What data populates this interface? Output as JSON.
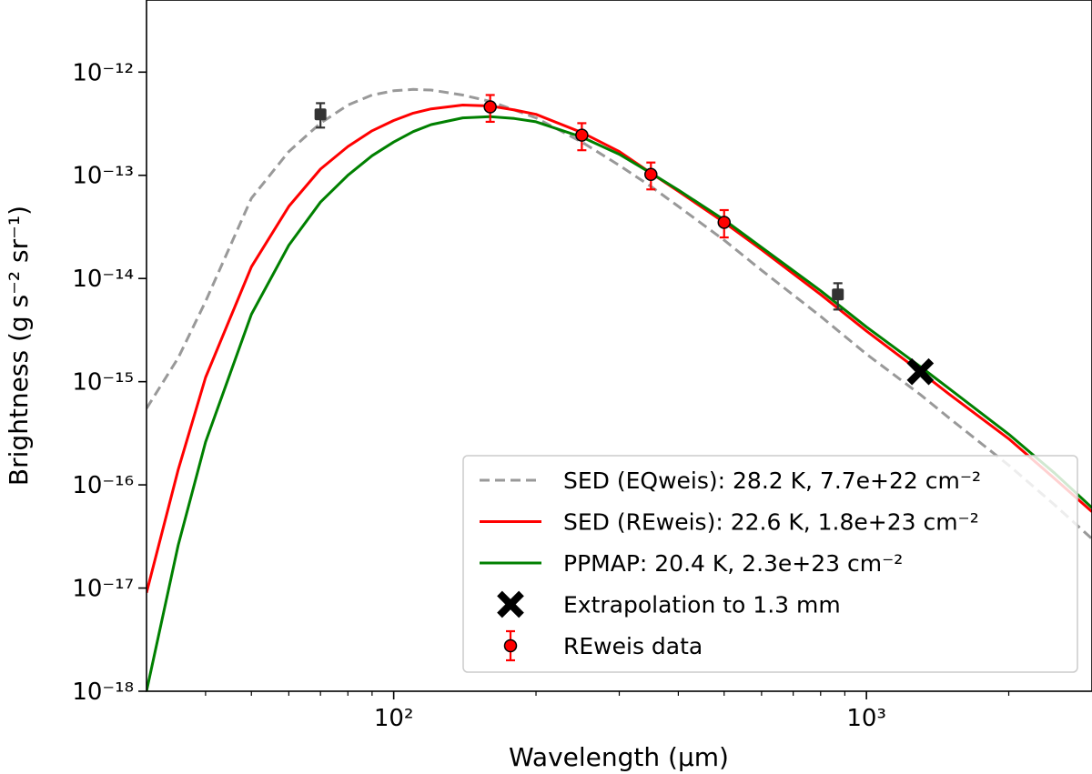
{
  "chart_data": {
    "type": "line",
    "xlabel": "Wavelength (μm)",
    "ylabel": "Brightness (g s⁻² sr⁻¹)",
    "xscale": "log",
    "yscale": "log",
    "xlim": [
      30,
      3000
    ],
    "ylim": [
      1e-18,
      5e-12
    ],
    "x_ticks": [
      {
        "value": 100,
        "label": "10²"
      },
      {
        "value": 1000,
        "label": "10³"
      }
    ],
    "y_ticks": [
      {
        "value": 1e-18,
        "label": "10⁻¹⁸"
      },
      {
        "value": 1e-17,
        "label": "10⁻¹⁷"
      },
      {
        "value": 1e-16,
        "label": "10⁻¹⁶"
      },
      {
        "value": 1e-15,
        "label": "10⁻¹⁵"
      },
      {
        "value": 1e-14,
        "label": "10⁻¹⁴"
      },
      {
        "value": 1e-13,
        "label": "10⁻¹³"
      },
      {
        "value": 1e-12,
        "label": "10⁻¹²"
      }
    ],
    "legend_position": "lower right",
    "series": [
      {
        "name": "SED (EQweis): 28.2 K, 7.7e+22 cm⁻²",
        "style": "dashed",
        "color": "#999999",
        "x": [
          30,
          35,
          40,
          50,
          60,
          70,
          80,
          90,
          100,
          110,
          120,
          140,
          160,
          180,
          200,
          250,
          300,
          350,
          400,
          500,
          600,
          800,
          1000,
          1300,
          1500,
          2000,
          2500,
          3000
        ],
        "y": [
          5.5e-16,
          1.7e-15,
          6e-15,
          6e-14,
          1.7e-13,
          3.2e-13,
          4.8e-13,
          6e-13,
          6.6e-13,
          6.8e-13,
          6.7e-13,
          6e-13,
          5.2e-13,
          4.3e-13,
          3.6e-13,
          2.1e-13,
          1.25e-13,
          7.8e-14,
          5e-14,
          2.35e-14,
          1.2e-14,
          4.3e-15,
          1.85e-15,
          7.5e-16,
          4.4e-16,
          1.55e-16,
          6.4e-17,
          3e-17
        ]
      },
      {
        "name": "SED (REweis): 22.6 K, 1.8e+23 cm⁻²",
        "style": "solid",
        "color": "#ff0000",
        "x": [
          30,
          35,
          40,
          50,
          60,
          70,
          80,
          90,
          100,
          110,
          120,
          140,
          160,
          180,
          200,
          250,
          300,
          350,
          400,
          500,
          600,
          800,
          1000,
          1300,
          1500,
          2000,
          2500,
          3000
        ],
        "y": [
          9e-18,
          1.4e-16,
          1.1e-15,
          1.3e-14,
          5e-14,
          1.15e-13,
          1.9e-13,
          2.7e-13,
          3.4e-13,
          4e-13,
          4.4e-13,
          4.8e-13,
          4.7e-13,
          4.3e-13,
          3.9e-13,
          2.6e-13,
          1.7e-13,
          1.05e-13,
          7e-14,
          3.5e-14,
          1.9e-14,
          7e-15,
          3.1e-15,
          1.25e-15,
          7.5e-16,
          2.8e-16,
          1.15e-16,
          5.5e-17
        ]
      },
      {
        "name": "PPMAP: 20.4 K, 2.3e+23 cm⁻²",
        "style": "solid",
        "color": "#008000",
        "x": [
          30,
          35,
          40,
          50,
          60,
          70,
          80,
          90,
          100,
          110,
          120,
          140,
          160,
          180,
          200,
          250,
          300,
          350,
          400,
          500,
          600,
          800,
          1000,
          1300,
          1500,
          2000,
          2500,
          3000
        ],
        "y": [
          1e-18,
          2.6e-17,
          2.6e-16,
          4.5e-15,
          2.1e-14,
          5.5e-14,
          1e-13,
          1.55e-13,
          2.1e-13,
          2.65e-13,
          3.1e-13,
          3.6e-13,
          3.7e-13,
          3.55e-13,
          3.3e-13,
          2.35e-13,
          1.6e-13,
          1.05e-13,
          7.2e-14,
          3.7e-14,
          2e-14,
          7.6e-15,
          3.4e-15,
          1.4e-15,
          8.5e-16,
          3.1e-16,
          1.3e-16,
          6e-17
        ]
      },
      {
        "name": "Extrapolation to 1.3 mm",
        "style": "marker-x",
        "color": "#000000",
        "x": [
          1300
        ],
        "y": [
          1.25e-15
        ]
      },
      {
        "name": "REweis data",
        "style": "marker-errorbar",
        "color": "#ff0000",
        "x": [
          160,
          250,
          350,
          500
        ],
        "y": [
          4.6e-13,
          2.45e-13,
          1.02e-13,
          3.5e-14
        ],
        "yerr_low": [
          3.3e-13,
          1.75e-13,
          7.3e-14,
          2.5e-14
        ],
        "yerr_high": [
          6e-13,
          3.2e-13,
          1.33e-13,
          4.6e-14
        ]
      },
      {
        "name": "",
        "style": "marker-errorbar-gray",
        "color": "#333333",
        "x": [
          70,
          870
        ],
        "y": [
          3.9e-13,
          7e-15
        ],
        "yerr_low": [
          2.9e-13,
          5e-15
        ],
        "yerr_high": [
          5e-13,
          9e-15
        ]
      }
    ]
  }
}
